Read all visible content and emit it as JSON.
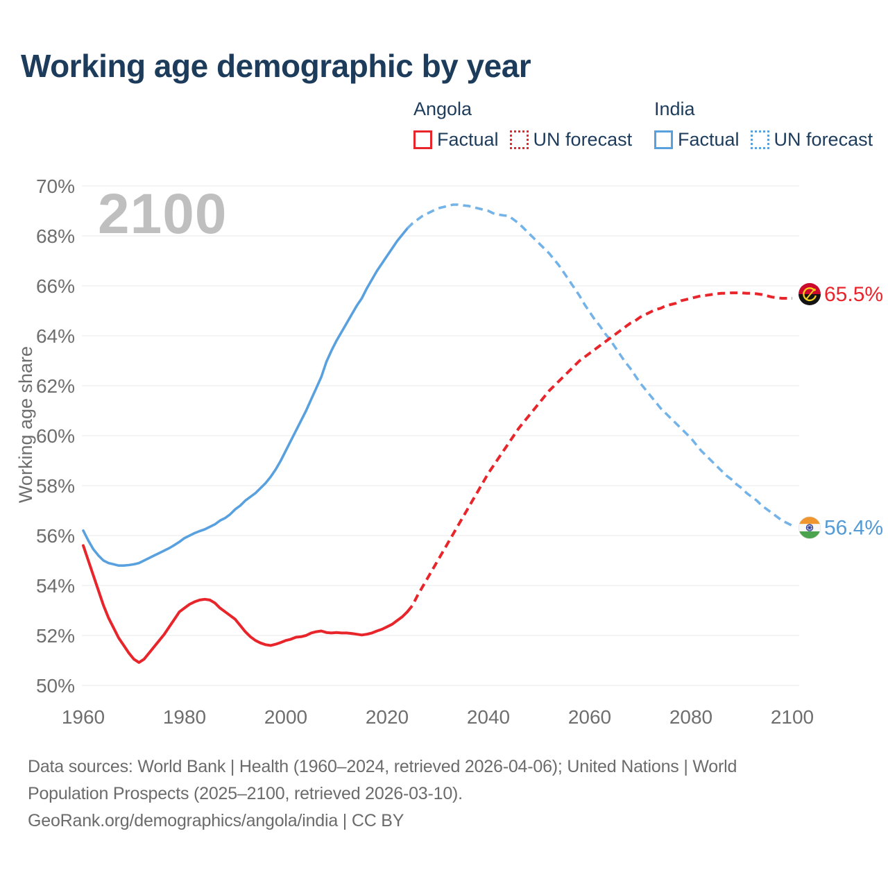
{
  "title": "Working age demographic by year",
  "watermark": "2100",
  "colors": {
    "navy": "#1d3c5c",
    "red": "#e9252c",
    "blue": "#59a1de",
    "blue_forecast": "#74b3e8",
    "blue_label": "#549bd5",
    "tick_gray": "#6e6e6e",
    "grid_gray": "#e8e8e8",
    "watermark_gray": "#bfbfbf",
    "footer_gray": "#6b6b6b"
  },
  "legend": {
    "groups": [
      {
        "country": "Angola",
        "color": "#e9252c",
        "items": [
          {
            "label": "Factual",
            "style": "solid"
          },
          {
            "label": "UN forecast",
            "style": "dotted"
          }
        ]
      },
      {
        "country": "India",
        "color": "#59a1de",
        "items": [
          {
            "label": "Factual",
            "style": "solid"
          },
          {
            "label": "UN forecast",
            "style": "dotted"
          }
        ]
      }
    ]
  },
  "chart_data": {
    "type": "line",
    "title": "Working age demographic by year",
    "xlabel": "",
    "ylabel": "Working age share",
    "x_ticks": [
      1960,
      1980,
      2000,
      2020,
      2040,
      2060,
      2080,
      2100
    ],
    "y_ticks": [
      70,
      68,
      66,
      64,
      62,
      60,
      58,
      56,
      54,
      52,
      50
    ],
    "y_tick_suffix": "%",
    "xlim": [
      1960,
      2100
    ],
    "ylim": [
      50,
      70
    ],
    "grid": "horizontal",
    "legend_position": "top-right",
    "series": [
      {
        "id": "india-factual-line",
        "name": "India Factual",
        "color": "#59a1de",
        "dash": false,
        "width": 3.6,
        "points": [
          [
            1960,
            56.2
          ],
          [
            1961,
            55.8
          ],
          [
            1962,
            55.45
          ],
          [
            1963,
            55.2
          ],
          [
            1964,
            55.0
          ],
          [
            1965,
            54.9
          ],
          [
            1966,
            54.85
          ],
          [
            1967,
            54.8
          ],
          [
            1968,
            54.8
          ],
          [
            1969,
            54.82
          ],
          [
            1970,
            54.85
          ],
          [
            1971,
            54.9
          ],
          [
            1972,
            55.0
          ],
          [
            1973,
            55.1
          ],
          [
            1974,
            55.2
          ],
          [
            1975,
            55.3
          ],
          [
            1976,
            55.4
          ],
          [
            1977,
            55.5
          ],
          [
            1978,
            55.62
          ],
          [
            1979,
            55.75
          ],
          [
            1980,
            55.9
          ],
          [
            1981,
            56.0
          ],
          [
            1982,
            56.1
          ],
          [
            1983,
            56.18
          ],
          [
            1984,
            56.25
          ],
          [
            1985,
            56.35
          ],
          [
            1986,
            56.45
          ],
          [
            1987,
            56.6
          ],
          [
            1988,
            56.7
          ],
          [
            1989,
            56.85
          ],
          [
            1990,
            57.05
          ],
          [
            1991,
            57.2
          ],
          [
            1992,
            57.4
          ],
          [
            1993,
            57.55
          ],
          [
            1994,
            57.7
          ],
          [
            1995,
            57.9
          ],
          [
            1996,
            58.1
          ],
          [
            1997,
            58.35
          ],
          [
            1998,
            58.65
          ],
          [
            1999,
            59.0
          ],
          [
            2000,
            59.4
          ],
          [
            2001,
            59.8
          ],
          [
            2002,
            60.2
          ],
          [
            2003,
            60.6
          ],
          [
            2004,
            61.0
          ],
          [
            2005,
            61.45
          ],
          [
            2006,
            61.9
          ],
          [
            2007,
            62.35
          ],
          [
            2008,
            62.95
          ],
          [
            2009,
            63.4
          ],
          [
            2010,
            63.8
          ],
          [
            2011,
            64.15
          ],
          [
            2012,
            64.5
          ],
          [
            2013,
            64.85
          ],
          [
            2014,
            65.2
          ],
          [
            2015,
            65.5
          ],
          [
            2016,
            65.9
          ],
          [
            2017,
            66.25
          ],
          [
            2018,
            66.6
          ],
          [
            2019,
            66.9
          ],
          [
            2020,
            67.2
          ],
          [
            2021,
            67.5
          ],
          [
            2022,
            67.8
          ],
          [
            2023,
            68.05
          ],
          [
            2024,
            68.3
          ]
        ]
      },
      {
        "id": "india-forecast-line",
        "name": "India UN forecast",
        "color": "#74b3e8",
        "dash": true,
        "width": 3.6,
        "points": [
          [
            2024,
            68.3
          ],
          [
            2025,
            68.5
          ],
          [
            2026,
            68.65
          ],
          [
            2027,
            68.8
          ],
          [
            2028,
            68.9
          ],
          [
            2029,
            69.0
          ],
          [
            2030,
            69.1
          ],
          [
            2031,
            69.15
          ],
          [
            2032,
            69.2
          ],
          [
            2033,
            69.25
          ],
          [
            2034,
            69.25
          ],
          [
            2035,
            69.22
          ],
          [
            2036,
            69.2
          ],
          [
            2037,
            69.15
          ],
          [
            2038,
            69.1
          ],
          [
            2039,
            69.05
          ],
          [
            2040,
            69.0
          ],
          [
            2041,
            68.9
          ],
          [
            2042,
            68.85
          ],
          [
            2043,
            68.82
          ],
          [
            2044,
            68.8
          ],
          [
            2045,
            68.65
          ],
          [
            2046,
            68.5
          ],
          [
            2047,
            68.3
          ],
          [
            2048,
            68.1
          ],
          [
            2049,
            67.9
          ],
          [
            2050,
            67.7
          ],
          [
            2051,
            67.5
          ],
          [
            2052,
            67.3
          ],
          [
            2053,
            67.05
          ],
          [
            2054,
            66.8
          ],
          [
            2055,
            66.5
          ],
          [
            2056,
            66.2
          ],
          [
            2057,
            65.9
          ],
          [
            2058,
            65.6
          ],
          [
            2059,
            65.25
          ],
          [
            2060,
            64.95
          ],
          [
            2061,
            64.65
          ],
          [
            2062,
            64.4
          ],
          [
            2063,
            64.1
          ],
          [
            2064,
            63.85
          ],
          [
            2065,
            63.55
          ],
          [
            2066,
            63.25
          ],
          [
            2067,
            62.95
          ],
          [
            2068,
            62.7
          ],
          [
            2069,
            62.4
          ],
          [
            2070,
            62.1
          ],
          [
            2071,
            61.85
          ],
          [
            2072,
            61.6
          ],
          [
            2073,
            61.35
          ],
          [
            2074,
            61.1
          ],
          [
            2075,
            60.9
          ],
          [
            2076,
            60.7
          ],
          [
            2077,
            60.5
          ],
          [
            2078,
            60.3
          ],
          [
            2079,
            60.1
          ],
          [
            2080,
            59.9
          ],
          [
            2081,
            59.65
          ],
          [
            2082,
            59.4
          ],
          [
            2083,
            59.2
          ],
          [
            2084,
            59.0
          ],
          [
            2085,
            58.8
          ],
          [
            2086,
            58.6
          ],
          [
            2087,
            58.4
          ],
          [
            2088,
            58.25
          ],
          [
            2089,
            58.05
          ],
          [
            2090,
            57.9
          ],
          [
            2091,
            57.7
          ],
          [
            2092,
            57.55
          ],
          [
            2093,
            57.4
          ],
          [
            2094,
            57.2
          ],
          [
            2095,
            57.05
          ],
          [
            2096,
            56.9
          ],
          [
            2097,
            56.75
          ],
          [
            2098,
            56.6
          ],
          [
            2099,
            56.5
          ],
          [
            2100,
            56.4
          ]
        ]
      },
      {
        "id": "angola-factual-line",
        "name": "Angola Factual",
        "color": "#e9252c",
        "dash": false,
        "width": 4,
        "points": [
          [
            1960,
            55.6
          ],
          [
            1961,
            55.0
          ],
          [
            1962,
            54.4
          ],
          [
            1963,
            53.8
          ],
          [
            1964,
            53.2
          ],
          [
            1965,
            52.7
          ],
          [
            1966,
            52.3
          ],
          [
            1967,
            51.9
          ],
          [
            1968,
            51.6
          ],
          [
            1969,
            51.3
          ],
          [
            1970,
            51.05
          ],
          [
            1971,
            50.92
          ],
          [
            1972,
            51.05
          ],
          [
            1973,
            51.3
          ],
          [
            1974,
            51.55
          ],
          [
            1975,
            51.8
          ],
          [
            1976,
            52.05
          ],
          [
            1977,
            52.35
          ],
          [
            1978,
            52.65
          ],
          [
            1979,
            52.95
          ],
          [
            1980,
            53.1
          ],
          [
            1981,
            53.25
          ],
          [
            1982,
            53.35
          ],
          [
            1983,
            53.42
          ],
          [
            1984,
            53.45
          ],
          [
            1985,
            53.42
          ],
          [
            1986,
            53.3
          ],
          [
            1987,
            53.1
          ],
          [
            1988,
            52.95
          ],
          [
            1989,
            52.8
          ],
          [
            1990,
            52.65
          ],
          [
            1991,
            52.4
          ],
          [
            1992,
            52.15
          ],
          [
            1993,
            51.95
          ],
          [
            1994,
            51.8
          ],
          [
            1995,
            51.7
          ],
          [
            1996,
            51.63
          ],
          [
            1997,
            51.6
          ],
          [
            1998,
            51.65
          ],
          [
            1999,
            51.72
          ],
          [
            2000,
            51.8
          ],
          [
            2001,
            51.85
          ],
          [
            2002,
            51.93
          ],
          [
            2003,
            51.95
          ],
          [
            2004,
            52.0
          ],
          [
            2005,
            52.1
          ],
          [
            2006,
            52.15
          ],
          [
            2007,
            52.18
          ],
          [
            2008,
            52.12
          ],
          [
            2009,
            52.1
          ],
          [
            2010,
            52.12
          ],
          [
            2011,
            52.1
          ],
          [
            2012,
            52.1
          ],
          [
            2013,
            52.08
          ],
          [
            2014,
            52.05
          ],
          [
            2015,
            52.02
          ],
          [
            2016,
            52.05
          ],
          [
            2017,
            52.1
          ],
          [
            2018,
            52.18
          ],
          [
            2019,
            52.25
          ],
          [
            2020,
            52.35
          ],
          [
            2021,
            52.45
          ],
          [
            2022,
            52.6
          ],
          [
            2023,
            52.75
          ],
          [
            2024,
            52.95
          ]
        ]
      },
      {
        "id": "angola-forecast-line",
        "name": "Angola UN forecast",
        "color": "#e9252c",
        "dash": true,
        "width": 4,
        "points": [
          [
            2024,
            52.95
          ],
          [
            2025,
            53.2
          ],
          [
            2026,
            53.6
          ],
          [
            2027,
            53.95
          ],
          [
            2028,
            54.3
          ],
          [
            2029,
            54.65
          ],
          [
            2030,
            55.0
          ],
          [
            2031,
            55.35
          ],
          [
            2032,
            55.7
          ],
          [
            2033,
            56.05
          ],
          [
            2034,
            56.4
          ],
          [
            2035,
            56.75
          ],
          [
            2036,
            57.1
          ],
          [
            2037,
            57.45
          ],
          [
            2038,
            57.8
          ],
          [
            2039,
            58.15
          ],
          [
            2040,
            58.5
          ],
          [
            2041,
            58.8
          ],
          [
            2042,
            59.1
          ],
          [
            2043,
            59.4
          ],
          [
            2044,
            59.7
          ],
          [
            2045,
            60.0
          ],
          [
            2046,
            60.3
          ],
          [
            2047,
            60.55
          ],
          [
            2048,
            60.8
          ],
          [
            2049,
            61.05
          ],
          [
            2050,
            61.3
          ],
          [
            2051,
            61.55
          ],
          [
            2052,
            61.8
          ],
          [
            2053,
            62.0
          ],
          [
            2054,
            62.2
          ],
          [
            2055,
            62.4
          ],
          [
            2056,
            62.6
          ],
          [
            2057,
            62.8
          ],
          [
            2058,
            63.0
          ],
          [
            2059,
            63.15
          ],
          [
            2060,
            63.3
          ],
          [
            2061,
            63.45
          ],
          [
            2062,
            63.6
          ],
          [
            2063,
            63.75
          ],
          [
            2064,
            63.9
          ],
          [
            2065,
            64.05
          ],
          [
            2066,
            64.2
          ],
          [
            2067,
            64.35
          ],
          [
            2068,
            64.5
          ],
          [
            2069,
            64.6
          ],
          [
            2070,
            64.75
          ],
          [
            2071,
            64.85
          ],
          [
            2072,
            64.95
          ],
          [
            2073,
            65.05
          ],
          [
            2074,
            65.1
          ],
          [
            2075,
            65.2
          ],
          [
            2076,
            65.25
          ],
          [
            2077,
            65.3
          ],
          [
            2078,
            65.4
          ],
          [
            2079,
            65.45
          ],
          [
            2080,
            65.5
          ],
          [
            2081,
            65.55
          ],
          [
            2082,
            65.6
          ],
          [
            2083,
            65.62
          ],
          [
            2084,
            65.65
          ],
          [
            2085,
            65.68
          ],
          [
            2086,
            65.7
          ],
          [
            2087,
            65.7
          ],
          [
            2088,
            65.72
          ],
          [
            2089,
            65.72
          ],
          [
            2090,
            65.72
          ],
          [
            2091,
            65.7
          ],
          [
            2092,
            65.7
          ],
          [
            2093,
            65.68
          ],
          [
            2094,
            65.65
          ],
          [
            2095,
            65.6
          ],
          [
            2096,
            65.55
          ],
          [
            2097,
            65.52
          ],
          [
            2098,
            65.5
          ],
          [
            2099,
            65.5
          ],
          [
            2100,
            65.5
          ]
        ]
      }
    ],
    "end_labels": [
      {
        "flag": "angola",
        "text": "65.5%",
        "value": 65.5,
        "color": "#e9252c"
      },
      {
        "flag": "india",
        "text": "56.4%",
        "value": 56.4,
        "color": "#549bd5"
      }
    ]
  },
  "footer": {
    "lines": [
      "Data sources: World Bank | Health (1960–2024, retrieved 2026-04-06); United Nations | World",
      "Population Prospects (2025–2100, retrieved 2026-03-10).",
      "GeoRank.org/demographics/angola/india | CC BY"
    ]
  }
}
